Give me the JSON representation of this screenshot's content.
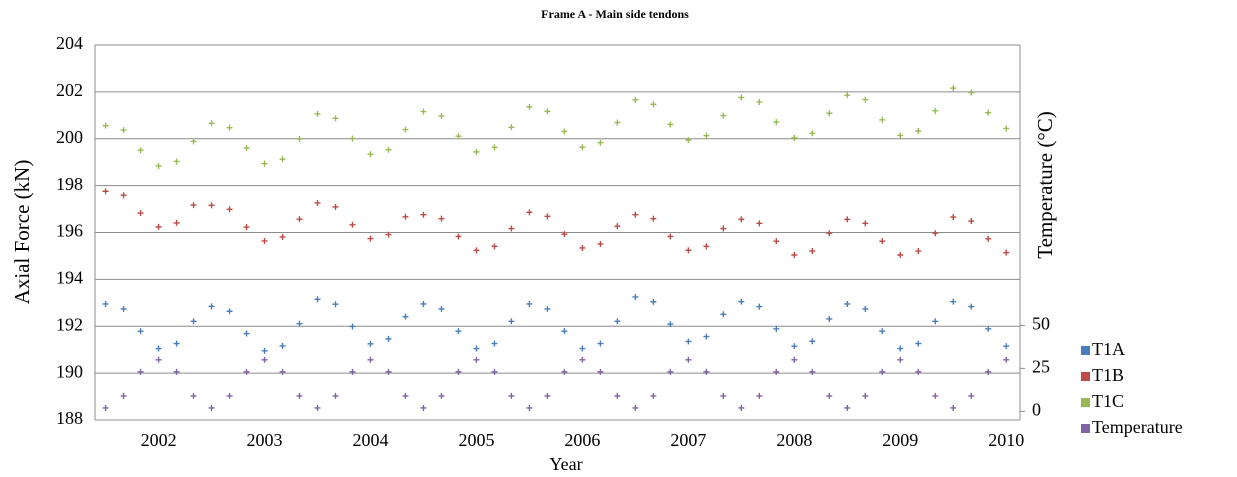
{
  "chart_data": {
    "type": "scatter",
    "title": "Frame A - Main side tendons",
    "xlabel": "Year",
    "ylabel": "Axial Force  (kN)",
    "y2label": "Temperature (°C)",
    "x": [
      2002,
      2002.17,
      2002.33,
      2002.5,
      2002.67,
      2002.83,
      2003,
      2003.17,
      2003.33,
      2003.5,
      2003.67,
      2003.83,
      2004,
      2004.17,
      2004.33,
      2004.5,
      2004.67,
      2004.83,
      2005,
      2005.17,
      2005.33,
      2005.5,
      2005.67,
      2005.83,
      2006,
      2006.17,
      2006.33,
      2006.5,
      2006.67,
      2006.83,
      2007,
      2007.17,
      2007.33,
      2007.5,
      2007.67,
      2007.83,
      2008,
      2008.17,
      2008.33,
      2008.5,
      2008.67,
      2008.83,
      2009,
      2009.17,
      2009.33,
      2009.5,
      2009.67,
      2009.83,
      2010,
      2010.17,
      2010.33,
      2010.5
    ],
    "series": [
      {
        "name": "T1A",
        "color": "#4a7ebb",
        "values": [
          192.95,
          192.74,
          191.79,
          191.05,
          191.26,
          192.21,
          192.85,
          192.64,
          191.69,
          190.95,
          191.16,
          192.11,
          193.15,
          192.94,
          191.99,
          191.25,
          191.46,
          192.41,
          192.95,
          192.74,
          191.79,
          191.05,
          191.26,
          192.21,
          192.95,
          192.74,
          191.79,
          191.05,
          191.26,
          192.21,
          193.25,
          193.04,
          192.09,
          191.35,
          191.56,
          192.51,
          193.05,
          192.84,
          191.89,
          191.15,
          191.36,
          192.31,
          192.95,
          192.74,
          191.79,
          191.05,
          191.26,
          192.21,
          193.05,
          192.84,
          191.89,
          191.15
        ]
      },
      {
        "name": "T1B",
        "color": "#be4b48",
        "values": [
          197.76,
          197.59,
          196.83,
          196.24,
          196.41,
          197.17,
          197.16,
          196.99,
          196.23,
          195.64,
          195.81,
          196.57,
          197.26,
          197.09,
          196.33,
          195.74,
          195.91,
          196.67,
          196.76,
          196.59,
          195.83,
          195.24,
          195.41,
          196.17,
          196.86,
          196.69,
          195.93,
          195.34,
          195.51,
          196.27,
          196.76,
          196.59,
          195.83,
          195.24,
          195.41,
          196.17,
          196.56,
          196.39,
          195.63,
          195.04,
          195.21,
          195.97,
          196.56,
          196.39,
          195.63,
          195.04,
          195.21,
          195.97,
          196.66,
          196.49,
          195.73,
          195.14
        ]
      },
      {
        "name": "T1C",
        "color": "#98b954",
        "values": [
          200.56,
          200.37,
          199.51,
          198.84,
          199.03,
          199.89,
          200.66,
          200.47,
          199.61,
          198.94,
          199.13,
          199.99,
          201.06,
          200.87,
          200.01,
          199.34,
          199.53,
          200.39,
          201.16,
          200.97,
          200.11,
          199.44,
          199.63,
          200.49,
          201.36,
          201.17,
          200.31,
          199.64,
          199.83,
          200.69,
          201.66,
          201.47,
          200.61,
          199.94,
          200.13,
          200.99,
          201.76,
          201.57,
          200.71,
          200.04,
          200.23,
          201.09,
          201.86,
          201.67,
          200.81,
          200.14,
          200.33,
          201.19,
          202.16,
          201.97,
          201.11,
          200.44
        ]
      },
      {
        "name": "Temperature",
        "color": "#8064a2",
        "axis": "y2",
        "values": [
          2,
          9,
          23,
          30,
          23,
          9,
          2,
          9,
          23,
          30,
          23,
          9,
          2,
          9,
          23,
          30,
          23,
          9,
          2,
          9,
          23,
          30,
          23,
          9,
          2,
          9,
          23,
          30,
          23,
          9,
          2,
          9,
          23,
          30,
          23,
          9,
          2,
          9,
          23,
          30,
          23,
          9,
          2,
          9,
          23,
          30,
          23,
          9,
          2,
          9,
          23,
          30
        ]
      }
    ],
    "xlim": [
      2001.9,
      2010.63
    ],
    "xticks": [
      {
        "value": 2002.5,
        "label": "2002"
      },
      {
        "value": 2003.5,
        "label": "2003"
      },
      {
        "value": 2004.5,
        "label": "2004"
      },
      {
        "value": 2005.5,
        "label": "2005"
      },
      {
        "value": 2006.5,
        "label": "2006"
      },
      {
        "value": 2007.5,
        "label": "2007"
      },
      {
        "value": 2008.5,
        "label": "2008"
      },
      {
        "value": 2009.5,
        "label": "2009"
      },
      {
        "value": 2010.5,
        "label": "2010"
      }
    ],
    "ylim": [
      188,
      204
    ],
    "yticks": [
      188,
      190,
      192,
      194,
      196,
      198,
      200,
      202,
      204
    ],
    "y2lim": [
      -5,
      213
    ],
    "y2ticks": [
      0,
      25,
      50
    ],
    "grid": true,
    "legend": "right"
  }
}
